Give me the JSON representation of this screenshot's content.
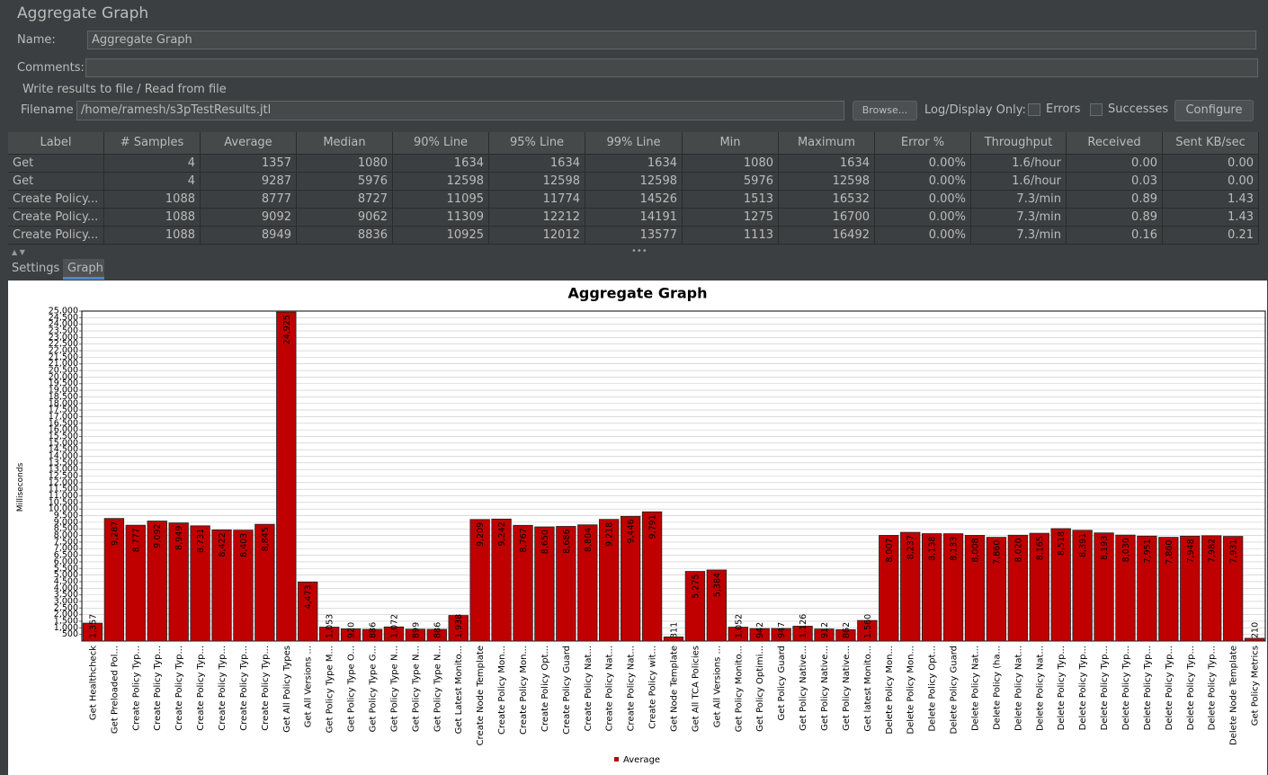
{
  "header": {
    "title": "Aggregate Graph"
  },
  "form": {
    "name_label": "Name:",
    "name_value": "Aggregate Graph",
    "comments_label": "Comments:",
    "file_group": "Write results to file / Read from file",
    "filename_label": "Filename",
    "filename_value": "/home/ramesh/s3pTestResults.jtl",
    "browse": "Browse...",
    "log_display": "Log/Display Only:",
    "errors": "Errors",
    "successes": "Successes",
    "configure": "Configure"
  },
  "table": {
    "columns": [
      "Label",
      "# Samples",
      "Average",
      "Median",
      "90% Line",
      "95% Line",
      "99% Line",
      "Min",
      "Maximum",
      "Error %",
      "Throughput",
      "Received KB/...",
      "Sent KB/sec"
    ],
    "rows": [
      [
        "Get Healthch...",
        "4",
        "1357",
        "1080",
        "1634",
        "1634",
        "1634",
        "1080",
        "1634",
        "0.00%",
        "1.6/hour",
        "0.00",
        "0.00"
      ],
      [
        "Get Preloade...",
        "4",
        "9287",
        "5976",
        "12598",
        "12598",
        "12598",
        "5976",
        "12598",
        "0.00%",
        "1.6/hour",
        "0.03",
        "0.00"
      ],
      [
        "Create Policy...",
        "1088",
        "8777",
        "8727",
        "11095",
        "11774",
        "14526",
        "1513",
        "16532",
        "0.00%",
        "7.3/min",
        "0.89",
        "1.43"
      ],
      [
        "Create Policy...",
        "1088",
        "9092",
        "9062",
        "11309",
        "12212",
        "14191",
        "1275",
        "16700",
        "0.00%",
        "7.3/min",
        "0.89",
        "1.43"
      ],
      [
        "Create Policy...",
        "1088",
        "8949",
        "8836",
        "10925",
        "12012",
        "13577",
        "1113",
        "16492",
        "0.00%",
        "7.3/min",
        "0.16",
        "0.21"
      ]
    ]
  },
  "tabs": [
    "Settings",
    "Graph"
  ],
  "chart_data": {
    "type": "bar",
    "title": "Aggregate Graph",
    "y_label": "Milliseconds",
    "grid": true,
    "categories": [
      "Get Healthcheck",
      "Get Preloaded Pol...",
      "Create Policy Typ...",
      "Create Policy Typ...",
      "Create Policy Typ...",
      "Create Policy Typ...",
      "Create Policy Typ...",
      "Create Policy Typ...",
      "Create Policy Typ...",
      "Get All Policy Types",
      "Get All Versions ...",
      "Get Policy Type M...",
      "Get Policy Type O...",
      "Get Policy Type G...",
      "Get Policy Type N...",
      "Get Policy Type N...",
      "Get Policy Type N...",
      "Get Latest Monito...",
      "Create Node Template",
      "Create Policy Mon...",
      "Create Policy Mon...",
      "Create Policy Opt...",
      "Create Policy Guard",
      "Create Policy Nat...",
      "Create Policy Nat...",
      "Create Policy Nat...",
      "Create Policy wit...",
      "Get Node Template",
      "Get All TCA Policies",
      "Get All Versions ...",
      "Get Policy Monito...",
      "Get Policy Optimi...",
      "Get Policy Guard",
      "Get Policy Native...",
      "Get Policy Native...",
      "Get Policy Native...",
      "Get latest Monito...",
      "Delete Policy Mon...",
      "Delete Policy Mon...",
      "Delete Policy Opt...",
      "Delete Policy Guard",
      "Delete Policy Nat...",
      "Delete Policy (ha...",
      "Delete Policy Nat...",
      "Delete Policy Nat...",
      "Delete Policy Typ...",
      "Delete Policy Typ...",
      "Delete Policy Typ...",
      "Delete Policy Typ...",
      "Delete Policy Typ...",
      "Delete Policy Typ...",
      "Delete Policy Typ...",
      "Delete Policy Typ...",
      "Delete Node Template",
      "Get Policy Metrics"
    ],
    "series": [
      {
        "name": "Average",
        "color": "#c00000",
        "values": [
          1357,
          9287,
          8777,
          9092,
          8949,
          8731,
          8422,
          8403,
          8845,
          24925,
          4473,
          1053,
          920,
          886,
          1072,
          899,
          886,
          1938,
          9209,
          9242,
          8767,
          8650,
          8686,
          8804,
          9218,
          9446,
          9791,
          311,
          5275,
          5384,
          1052,
          942,
          947,
          1126,
          912,
          862,
          1560,
          8007,
          8237,
          8138,
          8133,
          8008,
          7860,
          8020,
          8165,
          8518,
          8391,
          8193,
          8030,
          7951,
          7860,
          7948,
          7982,
          7931,
          210
        ],
        "value_labels": [
          "1,357",
          "9,287",
          "8,777",
          "9,092",
          "8,949",
          "8,731",
          "8,422",
          "8,403",
          "8,845",
          "24,925",
          "4,473",
          "1,053",
          "920",
          "886",
          "1,072",
          "899",
          "886",
          "1,938",
          "9,209",
          "9,242",
          "8,767",
          "8,650",
          "8,686",
          "8,804",
          "9,218",
          "9,446",
          "9,791",
          "311",
          "5,275",
          "5,384",
          "1,052",
          "942",
          "947",
          "1,126",
          "912",
          "862",
          "1,560",
          "8,007",
          "8,237",
          "8,138",
          "8,133",
          "8,008",
          "7,860",
          "8,020",
          "8,165",
          "8,518",
          "8,391",
          "8,193",
          "8,030",
          "7,951",
          "7,860",
          "7,948",
          "7,982",
          "7,931",
          "210"
        ]
      }
    ],
    "ylim": [
      0,
      25000
    ],
    "yticks": [
      500,
      {
        "value": 1000,
        "label": "1,000"
      },
      {
        "value": 1500,
        "label": "1,500"
      },
      {
        "value": 2000,
        "label": "2,000"
      },
      {
        "value": 2500,
        "label": "2,500"
      },
      {
        "value": 3000,
        "label": "3,000"
      },
      {
        "value": 3500,
        "label": "3,500"
      },
      {
        "value": 4000,
        "label": "4,000"
      },
      {
        "value": 4500,
        "label": "4,500"
      },
      {
        "value": 5000,
        "label": "5,000"
      },
      {
        "value": 5500,
        "label": "5,500"
      },
      {
        "value": 6000,
        "label": "6,000"
      },
      {
        "value": 6500,
        "label": "6,500"
      },
      {
        "value": 7000,
        "label": "7,000"
      },
      {
        "value": 7500,
        "label": "7,500"
      },
      {
        "value": 8000,
        "label": "8,000"
      },
      {
        "value": 8500,
        "label": "8,500"
      },
      {
        "value": 9000,
        "label": "9,000"
      },
      {
        "value": 9500,
        "label": "9,500"
      },
      {
        "value": 10000,
        "label": "10,000"
      },
      {
        "value": 10500,
        "label": "10,500"
      },
      {
        "value": 11000,
        "label": "11,000"
      },
      {
        "value": 11500,
        "label": "11,500"
      },
      {
        "value": 12000,
        "label": "12,000"
      },
      {
        "value": 12500,
        "label": "12,500"
      },
      {
        "value": 13000,
        "label": "13,000"
      },
      {
        "value": 13500,
        "label": "13,500"
      },
      {
        "value": 14000,
        "label": "14,000"
      },
      {
        "value": 14500,
        "label": "14,500"
      },
      {
        "value": 15000,
        "label": "15,000"
      },
      {
        "value": 15500,
        "label": "15,500"
      },
      {
        "value": 16000,
        "label": "16,000"
      },
      {
        "value": 16500,
        "label": "16,500"
      },
      {
        "value": 17000,
        "label": "17,000"
      },
      {
        "value": 17500,
        "label": "17,500"
      },
      {
        "value": 18000,
        "label": "18,000"
      },
      {
        "value": 18500,
        "label": "18,500"
      },
      {
        "value": 19000,
        "label": "19,000"
      },
      {
        "value": 19500,
        "label": "19,500"
      },
      {
        "value": 20000,
        "label": "20,000"
      },
      {
        "value": 20500,
        "label": "20,500"
      },
      {
        "value": 21000,
        "label": "21,000"
      },
      {
        "value": 21500,
        "label": "21,500"
      },
      {
        "value": 22000,
        "label": "22,000"
      },
      {
        "value": 22500,
        "label": "22,500"
      },
      {
        "value": 23000,
        "label": "23,000"
      },
      {
        "value": 23500,
        "label": "23,500"
      },
      {
        "value": 24000,
        "label": "24,000"
      },
      {
        "value": 24500,
        "label": "24,500"
      },
      {
        "value": 25000,
        "label": "25,000"
      }
    ],
    "legend": "bottom"
  }
}
